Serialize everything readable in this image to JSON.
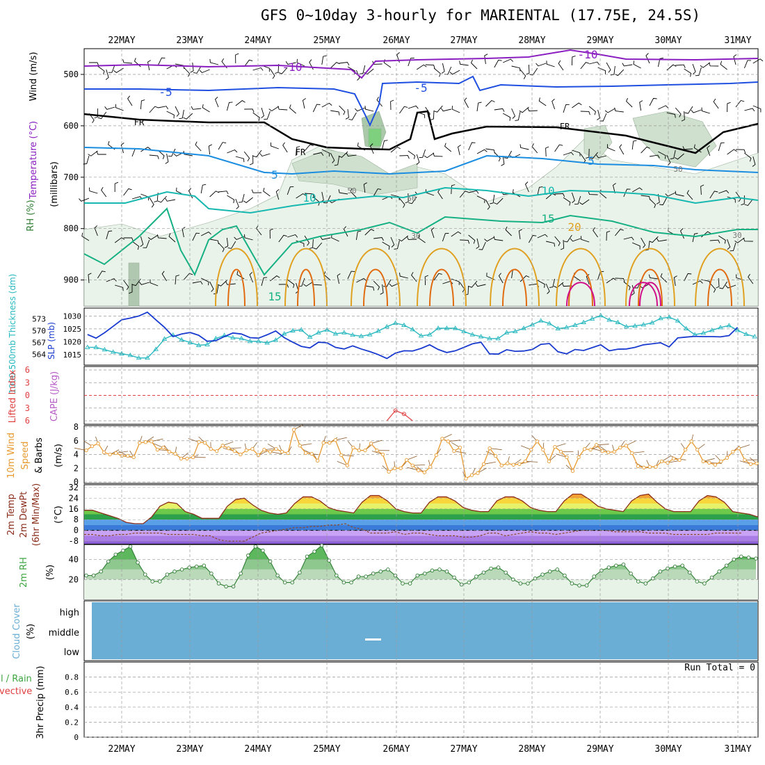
{
  "title": "GFS 0~10day 3-hourly for MARIENTAL (17.75E, 24.5S)",
  "dates": [
    "22MAY",
    "23MAY",
    "24MAY",
    "25MAY",
    "26MAY",
    "27MAY",
    "28MAY",
    "29MAY",
    "30MAY",
    "31MAY"
  ],
  "colors": {
    "purple": "#8a1ec0",
    "blue": "#1f4fe0",
    "sky": "#1b8de0",
    "teal": "#16b8b0",
    "sea": "#15b083",
    "gold": "#e0a020",
    "orange": "#e06b10",
    "magenta": "#d0108a",
    "black": "#000000",
    "slp": "#1a3bd0",
    "thick": "#28b8c0",
    "wind": "#e89a30",
    "rh": "#3ea540",
    "cloud": "#6aaed6",
    "li": "#e04040",
    "cape": "#b65ec6"
  },
  "panels": {
    "profile": {
      "ylabel_rh": "RH (%)",
      "ylabel_temp": "Temperature (°C)",
      "ylabel_wind": "Wind (m/s)",
      "ylabel_unit": "(millibars)",
      "yticks": [
        "500",
        "600",
        "700",
        "800",
        "900"
      ],
      "labels": {
        "m10a": "-10",
        "m10b": "-10",
        "m5a": "-5",
        "m5b": "-5",
        "fra": "FR",
        "frb": "FR",
        "frc": "FR",
        "p5a": "5",
        "p5b": "5",
        "p10a": "10",
        "p10b": "10",
        "p15a": "15",
        "p15b": "15",
        "p20": "20",
        "r50a": "50",
        "r50b": "50",
        "r50c": "50",
        "r30a": "30",
        "r30b": "30"
      }
    },
    "slp": {
      "ylabel_thick": "1000-500mb Thickness (dm)",
      "ylabel_slp": "SLP (mb)",
      "left_ticks": [
        "573",
        "570",
        "567",
        "564"
      ],
      "right_ticks": [
        "1030",
        "1025",
        "1020",
        "1015"
      ]
    },
    "li": {
      "ylabel_li": "Lifted Index",
      "ylabel_cape": "CAPE (J/kg)",
      "yticks": [
        "6",
        "3",
        "0",
        "3",
        "6"
      ]
    },
    "wind10": {
      "ylabel_a": "10m Wind",
      "ylabel_b": "Speed",
      "ylabel_c": "& Barbs",
      "ylabel_unit": "(m/s)",
      "yticks": [
        "8",
        "6",
        "4",
        "2",
        "0"
      ]
    },
    "temp2m": {
      "ylabel_a": "2m Temp",
      "ylabel_b": "2m DewPt",
      "ylabel_c": "(6hr Min/Max)",
      "ylabel_unit": "(°C)",
      "yticks": [
        "32",
        "24",
        "16",
        "8",
        "0",
        "-8"
      ]
    },
    "rh2m": {
      "ylabel": "2m RH",
      "ylabel_unit": "(%)",
      "yticks": [
        "40",
        "20"
      ]
    },
    "cloud": {
      "ylabel": "Cloud Cover",
      "ylabel_unit": "(%)",
      "levels": [
        "high",
        "middle",
        "low"
      ]
    },
    "precip": {
      "ylabel_a": "Total / Rain",
      "ylabel_b": "Convective",
      "ylabel_c": "3hr Precip (mm)",
      "yticks": [
        "0.8",
        "0.6",
        "0.4",
        "0.2",
        "0"
      ],
      "run_total": "Run Total = 0"
    }
  },
  "chart_data": [
    {
      "type": "line",
      "title": "1000-500mb Thickness (dm) / SLP (mb)",
      "x_unit": "3-hourly steps from 21 MAY 12Z",
      "series": [
        {
          "name": "SLP (mb)",
          "ylim": [
            1012,
            1032
          ],
          "values": [
            1022.8,
            1021.4,
            1023.5,
            1026.0,
            1028.5,
            1029.2,
            1030.0,
            1031.5,
            1028.5,
            1025.6,
            1022.0,
            1023.0,
            1023.6,
            1022.5,
            1020.2,
            1020.4,
            1022.0,
            1023.4,
            1023.0,
            1021.6,
            1021.4,
            1022.7,
            1024.2,
            1021.6,
            1019.8,
            1018.2,
            1017.6,
            1019.8,
            1019.6,
            1017.8,
            1017.2,
            1018.4,
            1017.2,
            1016.2,
            1015.0,
            1013.5,
            1015.6,
            1016.5,
            1016.4,
            1017.4,
            1018.8,
            1017.0,
            1015.8,
            1016.5,
            1017.8,
            1019.2,
            1019.8,
            1015.3,
            1015.2,
            1016.9,
            1016.3,
            1016.4,
            1017.0,
            1019.0,
            1019.3,
            1016.1,
            1015.3,
            1017.0,
            1016.6,
            1017.7,
            1018.8,
            1016.5,
            1017.1,
            1017.2,
            1017.8,
            1018.8,
            1019.2,
            1019.6,
            1018.0,
            1021.5,
            1021.8,
            1022.1,
            1022.0,
            1022.0,
            1021.9,
            1022.4,
            1025.6
          ]
        },
        {
          "name": "1000-500mb Thickness (dm)",
          "ylim": [
            562,
            575
          ],
          "values": [
            565.8,
            565.8,
            565.2,
            564.6,
            564.2,
            563.8,
            563.1,
            563.1,
            565.3,
            567.9,
            568.9,
            567.7,
            567.0,
            566.3,
            566.5,
            568.0,
            568.8,
            568.2,
            568.0,
            567.3,
            567.3,
            566.9,
            567.6,
            569.2,
            570.0,
            570.2,
            568.4,
            569.5,
            570.2,
            569.2,
            569.5,
            568.9,
            568.6,
            569.0,
            569.9,
            571.0,
            571.9,
            571.4,
            570.3,
            568.7,
            569.0,
            570.6,
            570.6,
            570.6,
            569.8,
            569.0,
            568.5,
            568.0,
            568.0,
            569.5,
            569.8,
            570.6,
            571.5,
            572.5,
            571.8,
            570.5,
            570.8,
            571.4,
            572.1,
            573.0,
            573.8,
            572.7,
            572.1,
            571.0,
            571.2,
            571.5,
            572.0,
            573.1,
            573.4,
            572.5,
            570.5,
            569.0,
            569.4,
            570.1,
            570.8,
            571.3,
            570.1,
            569.1,
            568.5
          ]
        }
      ]
    },
    {
      "type": "line",
      "title": "10m Wind Speed (m/s)",
      "ylim": [
        0,
        8
      ],
      "values": [
        4.6,
        5.2,
        5.6,
        4.3,
        4.0,
        4.2,
        3.8,
        3.8,
        3.6,
        5.7,
        5.8,
        5.9,
        4.7,
        5.0,
        4.4,
        4.1,
        3.4,
        3.4,
        3.6,
        5.8,
        5.7,
        4.8,
        4.5,
        5.3,
        4.9,
        4.5,
        4.0,
        4.6,
        4.8,
        3.9,
        4.7,
        4.4,
        4.8,
        4.4,
        4.2,
        7.6,
        5.3,
        4.2,
        4.1,
        3.1,
        5.7,
        5.7,
        6.1,
        3.9,
        2.4,
        5.0,
        4.6,
        4.6,
        5.6,
        4.6,
        4.0,
        1.5,
        2.0,
        2.0,
        3.2,
        2.4,
        1.7,
        1.4,
        2.2,
        3.9,
        6.3,
        5.9,
        4.5,
        5.0,
        0.5,
        1.0,
        1.3,
        2.6,
        4.9,
        3.8,
        2.4,
        2.7,
        2.5,
        2.6,
        3.0,
        4.7,
        5.9,
        4.7,
        3.0,
        5.1,
        4.4,
        3.6,
        1.6,
        3.6,
        4.8,
        4.7,
        5.4,
        4.5,
        4.3,
        4.4,
        5.0,
        5.3,
        4.2,
        2.3,
        2.1,
        2.2,
        2.2,
        3.0,
        2.8,
        3.4,
        3.2,
        4.7,
        5.9,
        4.7,
        3.0,
        2.8,
        2.5,
        3.0,
        3.5,
        4.4,
        4.9,
        3.2,
        2.6,
        2.7
      ]
    },
    {
      "type": "area",
      "title": "2m Temp / 2m DewPt (°C)",
      "ylim": [
        -10,
        34
      ],
      "series": [
        {
          "name": "2m Temp",
          "values": [
            15,
            15,
            13,
            11,
            9,
            6,
            5,
            5,
            10,
            18,
            21,
            20,
            14,
            12,
            9,
            9,
            9,
            18,
            23,
            24,
            19,
            15,
            13,
            12,
            13,
            20,
            25,
            25,
            22,
            17,
            15,
            14,
            13,
            21,
            26,
            26,
            22,
            16,
            14,
            13,
            13,
            21,
            25,
            25,
            22,
            17,
            15,
            14,
            14,
            22,
            25,
            25,
            22,
            17,
            15,
            14,
            14,
            22,
            27,
            27,
            23,
            18,
            16,
            15,
            14,
            22,
            26,
            27,
            21,
            16,
            14,
            14,
            14,
            22,
            26,
            25,
            21,
            14,
            13,
            12,
            10
          ]
        },
        {
          "name": "2m DewPt",
          "values": [
            -3,
            -3,
            -4,
            -4,
            -3,
            -3,
            -2,
            -2,
            -2,
            -2,
            -3,
            -3,
            -3,
            -3,
            -4,
            -4,
            -7,
            -8,
            -8,
            -8,
            -5,
            -2,
            -1,
            0,
            1,
            2,
            2,
            3,
            3,
            4,
            4,
            5,
            2,
            1,
            -2,
            -2,
            -2,
            -1,
            -3,
            -2,
            -2,
            -3,
            -4,
            -4,
            -4,
            -5,
            -5,
            -4,
            -2,
            -2,
            -4,
            -3,
            -2,
            -1,
            -2,
            -2,
            -3,
            -2,
            -1,
            0,
            0,
            0,
            0,
            -1,
            -1,
            -1,
            -1,
            -2,
            -2,
            -2,
            -3,
            -3,
            -3,
            -3,
            -3,
            -2,
            -2,
            -2,
            -2
          ]
        }
      ]
    },
    {
      "type": "area",
      "title": "2m RH (%)",
      "ylim": [
        0,
        55
      ],
      "values": [
        24,
        24,
        28,
        38,
        45,
        49,
        53,
        37,
        25,
        18,
        18,
        25,
        28,
        30,
        32,
        33,
        34,
        26,
        16,
        13,
        13,
        26,
        44,
        53,
        49,
        38,
        24,
        17,
        17,
        27,
        43,
        48,
        54,
        39,
        24,
        17,
        17,
        23,
        23,
        26,
        28,
        30,
        24,
        16,
        16,
        24,
        26,
        29,
        30,
        28,
        22,
        15,
        17,
        23,
        27,
        31,
        32,
        27,
        20,
        16,
        16,
        21,
        25,
        28,
        30,
        24,
        16,
        14,
        14,
        23,
        29,
        32,
        34,
        35,
        26,
        18,
        16,
        21,
        28,
        31,
        33,
        34,
        27,
        18,
        16,
        22,
        28,
        34,
        40,
        43,
        42,
        41
      ]
    },
    {
      "type": "bar",
      "title": "3hr Precip (mm)",
      "ylim": [
        0,
        1
      ],
      "values": [],
      "annotation": "Run Total = 0"
    }
  ]
}
